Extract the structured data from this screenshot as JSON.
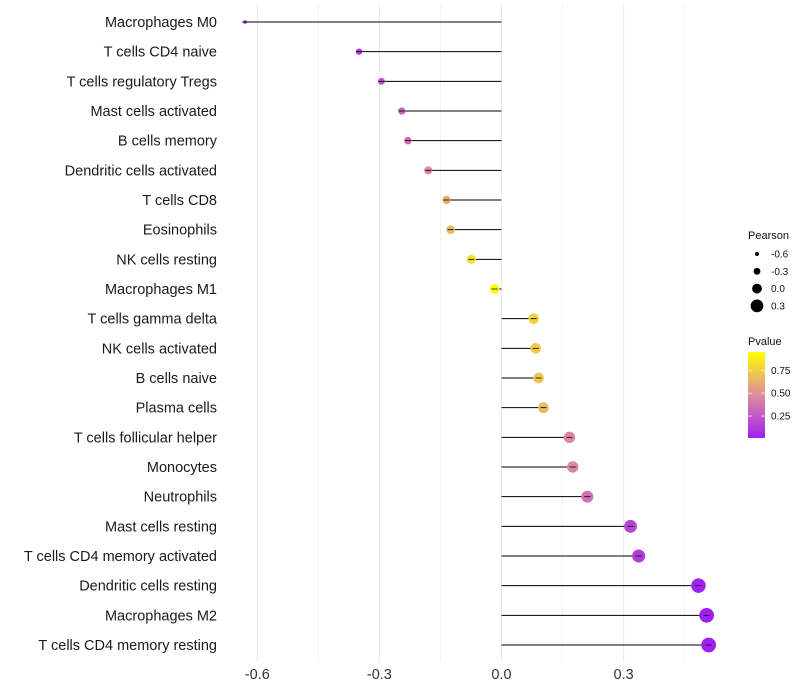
{
  "chart_data": {
    "type": "lollipop",
    "xlabel": "",
    "ylabel": "",
    "xlim": [
      -0.66,
      0.56
    ],
    "xticks": [
      -0.6,
      -0.3,
      0.0,
      0.3
    ],
    "xtick_labels": [
      "-0.6",
      "-0.3",
      "0.0",
      "0.3"
    ],
    "grid": true,
    "categories": [
      "Macrophages M0",
      "T cells CD4 naive",
      "T cells regulatory  Tregs ",
      "Mast cells activated",
      "B cells memory",
      "Dendritic cells activated",
      "T cells CD8",
      "Eosinophils",
      "NK cells resting",
      "Macrophages M1",
      "T cells gamma delta",
      "NK cells activated",
      "B cells naive",
      "Plasma cells",
      "T cells follicular helper",
      "Monocytes",
      "Neutrophils",
      "Mast cells resting",
      "T cells CD4 memory activated",
      "Dendritic cells resting",
      "Macrophages M2",
      "T cells CD4 memory resting"
    ],
    "pearson": [
      -0.63,
      -0.35,
      -0.295,
      -0.245,
      -0.23,
      -0.18,
      -0.135,
      -0.125,
      -0.074,
      -0.017,
      0.079,
      0.084,
      0.091,
      0.103,
      0.167,
      0.175,
      0.211,
      0.317,
      0.337,
      0.484,
      0.504,
      0.509
    ],
    "pvalue": [
      0.01,
      0.12,
      0.22,
      0.32,
      0.34,
      0.45,
      0.62,
      0.66,
      0.82,
      0.95,
      0.76,
      0.73,
      0.71,
      0.66,
      0.45,
      0.44,
      0.36,
      0.17,
      0.14,
      0.02,
      0.01,
      0.01
    ],
    "legend_size": {
      "title": "Pearson",
      "values": [
        -0.6,
        -0.3,
        0.0,
        0.3
      ],
      "labels": [
        "-0.6",
        "-0.3",
        "0.0",
        "0.3"
      ]
    },
    "legend_color": {
      "title": "Pvalue",
      "range": [
        0.01,
        0.95
      ],
      "ticks": [
        0.25,
        0.5,
        0.75
      ],
      "labels": [
        "0.25",
        "0.50",
        "0.75"
      ],
      "low_color": "#A020F0",
      "mid_color": "#DE8CA0",
      "high_color": "#FFFF00"
    },
    "legend_placement": "right"
  }
}
